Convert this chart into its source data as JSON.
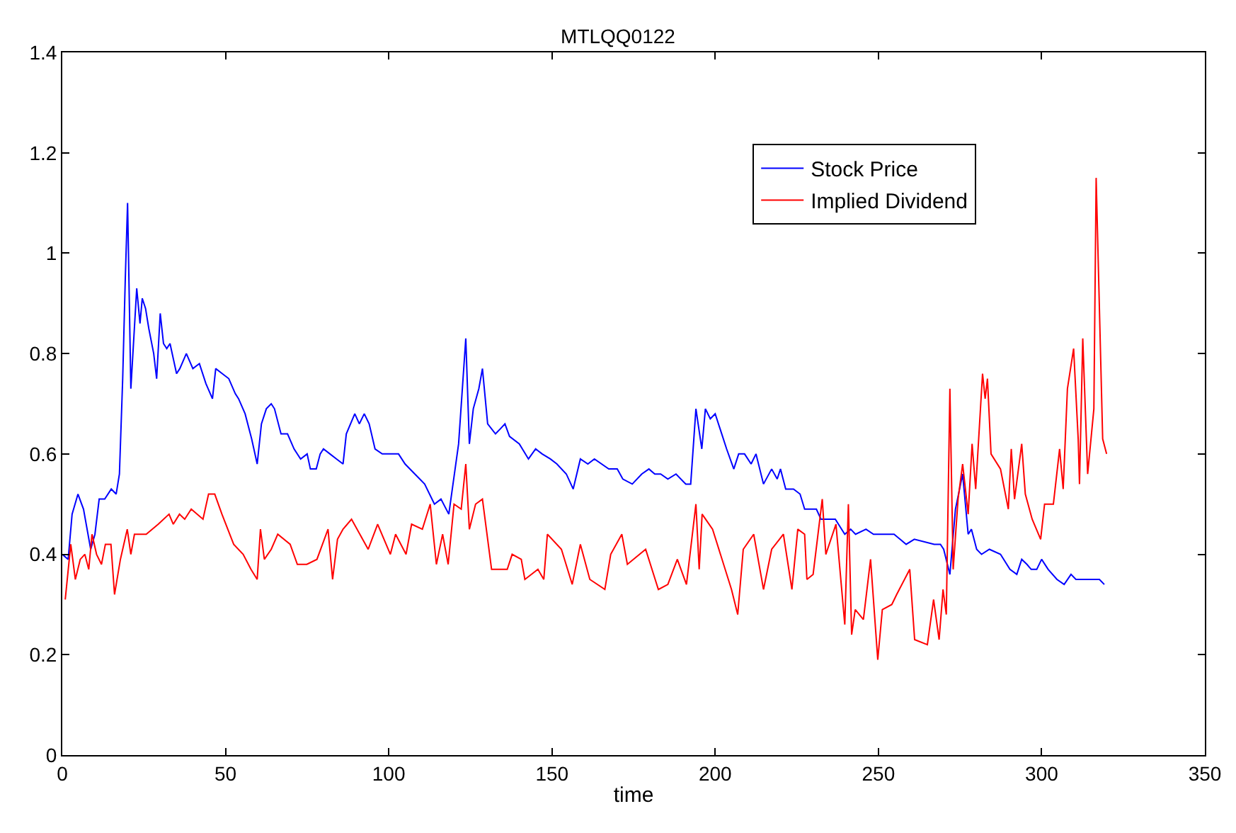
{
  "chart_data": {
    "type": "line",
    "title": "MTLQQ0122",
    "xlabel": "time",
    "xlim": [
      0,
      350
    ],
    "xticks": [
      0,
      50,
      100,
      150,
      200,
      250,
      300,
      350
    ],
    "ylim": [
      0,
      1.4
    ],
    "yticks": [
      0,
      0.2,
      0.4,
      0.6,
      0.8,
      1,
      1.2,
      1.4
    ],
    "grid": false,
    "legend": "top right",
    "marker": "none",
    "line_style": "solid",
    "series": [
      {
        "name": "Stock Price",
        "color": "#0000ff",
        "x": [
          0,
          1.8,
          3,
          4.8,
          6.5,
          8.7,
          10,
          11.3,
          13,
          15,
          16.5,
          17.5,
          18.5,
          19.3,
          20,
          21,
          22.8,
          23.8,
          24.5,
          25.5,
          26.5,
          28,
          28.9,
          30,
          31,
          32,
          33,
          34,
          35,
          36,
          38,
          40,
          42,
          44,
          46,
          47,
          49,
          51,
          53,
          54,
          56,
          58,
          59.7,
          61,
          62.5,
          64,
          65,
          67,
          69,
          71,
          73,
          75,
          76,
          77.8,
          79,
          80,
          82,
          84,
          86,
          87,
          89.6,
          91,
          92.5,
          94,
          95.8,
          98,
          100,
          103,
          105,
          108,
          111,
          114,
          116,
          118.4,
          121.4,
          123.6,
          124.7,
          125.9,
          127.6,
          128.7,
          130.3,
          132.7,
          134.2,
          135.6,
          137,
          140,
          142.8,
          145,
          147,
          149.5,
          151.5,
          154.4,
          156.5,
          158.7,
          161,
          163,
          167.4,
          170,
          171.7,
          174.6,
          177.5,
          179.7,
          181.5,
          183.3,
          185.5,
          188,
          191,
          192.5,
          194.1,
          195.9,
          197,
          198.5,
          200,
          201.5,
          203.5,
          205.7,
          207.2,
          209,
          211,
          212.5,
          214.8,
          217.3,
          219,
          220,
          221.6,
          224,
          226,
          227.4,
          231,
          232.4,
          236.8,
          239.7,
          241.5,
          243,
          246.2,
          248.5,
          251,
          254.8,
          258.5,
          261,
          267.1,
          269,
          270,
          271.9,
          273.6,
          275.8,
          277.5,
          278.5,
          280.1,
          281.6,
          284,
          287.4,
          290.3,
          292.4,
          293.9,
          295.5,
          296.8,
          298.5,
          300,
          302,
          304.7,
          306.9,
          309,
          310.5,
          312.7,
          317.7,
          319.2
        ],
        "values": [
          0.4,
          0.39,
          0.48,
          0.52,
          0.49,
          0.41,
          0.44,
          0.51,
          0.51,
          0.53,
          0.52,
          0.56,
          0.75,
          0.95,
          1.1,
          0.73,
          0.93,
          0.86,
          0.91,
          0.89,
          0.85,
          0.8,
          0.75,
          0.88,
          0.82,
          0.81,
          0.82,
          0.79,
          0.76,
          0.77,
          0.8,
          0.77,
          0.78,
          0.74,
          0.71,
          0.77,
          0.76,
          0.75,
          0.72,
          0.71,
          0.68,
          0.63,
          0.58,
          0.66,
          0.69,
          0.7,
          0.69,
          0.64,
          0.64,
          0.61,
          0.59,
          0.6,
          0.57,
          0.57,
          0.6,
          0.61,
          0.6,
          0.59,
          0.58,
          0.64,
          0.68,
          0.66,
          0.68,
          0.66,
          0.61,
          0.6,
          0.6,
          0.6,
          0.58,
          0.56,
          0.54,
          0.5,
          0.51,
          0.48,
          0.62,
          0.83,
          0.62,
          0.69,
          0.73,
          0.77,
          0.66,
          0.64,
          0.65,
          0.66,
          0.635,
          0.62,
          0.59,
          0.61,
          0.6,
          0.59,
          0.58,
          0.56,
          0.53,
          0.59,
          0.58,
          0.59,
          0.57,
          0.57,
          0.55,
          0.54,
          0.56,
          0.57,
          0.56,
          0.56,
          0.55,
          0.56,
          0.54,
          0.54,
          0.69,
          0.61,
          0.69,
          0.67,
          0.68,
          0.65,
          0.61,
          0.57,
          0.6,
          0.6,
          0.58,
          0.6,
          0.54,
          0.57,
          0.55,
          0.57,
          0.53,
          0.53,
          0.52,
          0.49,
          0.49,
          0.47,
          0.47,
          0.44,
          0.45,
          0.44,
          0.45,
          0.44,
          0.44,
          0.44,
          0.42,
          0.43,
          0.42,
          0.42,
          0.41,
          0.36,
          0.49,
          0.56,
          0.44,
          0.45,
          0.41,
          0.4,
          0.41,
          0.4,
          0.37,
          0.36,
          0.39,
          0.38,
          0.37,
          0.37,
          0.39,
          0.37,
          0.35,
          0.34,
          0.36,
          0.35,
          0.35,
          0.35,
          0.34
        ]
      },
      {
        "name": "Implied Dividend",
        "color": "#ff0000",
        "x": [
          0.9,
          2.6,
          4,
          5.5,
          6.9,
          8.1,
          9.1,
          10.5,
          12,
          13.2,
          14.9,
          16,
          17.8,
          19.9,
          21,
          22.1,
          25.7,
          29.4,
          32.7,
          34,
          35.9,
          37.5,
          39.5,
          43.1,
          44.8,
          46.7,
          48.9,
          52.5,
          55.4,
          57.8,
          59.7,
          60.7,
          61.9,
          64,
          66,
          69.8,
          72,
          74.9,
          78,
          81.4,
          82.8,
          84.3,
          86,
          88.6,
          93.7,
          96.6,
          100.5,
          102.1,
          105.3,
          107,
          110.3,
          112.7,
          114.6,
          116.5,
          118.2,
          120,
          122.2,
          123.6,
          124.7,
          126.6,
          128.7,
          131.5,
          136.3,
          137.8,
          140.6,
          141.7,
          145.7,
          147.5,
          148.6,
          152.9,
          156.2,
          158.7,
          161.6,
          166.2,
          168,
          171.4,
          173.1,
          178.7,
          182.6,
          185.5,
          188.4,
          191.2,
          194.1,
          195.1,
          196,
          199.2,
          205,
          206.9,
          208.6,
          211.8,
          214.8,
          217.3,
          220.9,
          223.5,
          225.3,
          227.4,
          228.1,
          230,
          232.8,
          233.9,
          237,
          239.7,
          240.8,
          241.8,
          242.9,
          245.4,
          247.6,
          249.8,
          251.2,
          254.1,
          255.6,
          259.6,
          261.1,
          265,
          266.9,
          268.6,
          269.8,
          270.8,
          271.9,
          272.9,
          274.4,
          275.8,
          277.5,
          278.7,
          279.8,
          281.9,
          282.7,
          283.4,
          284.5,
          287.4,
          289.8,
          290.7,
          291.7,
          293.9,
          295,
          297.1,
          299.7,
          300.9,
          303.6,
          305.5,
          306.6,
          307.9,
          309.8,
          311.2,
          311.6,
          312.6,
          314.1,
          316,
          316.7,
          318.7,
          319.9
        ],
        "values": [
          0.31,
          0.42,
          0.35,
          0.39,
          0.4,
          0.37,
          0.44,
          0.4,
          0.38,
          0.42,
          0.42,
          0.32,
          0.39,
          0.45,
          0.4,
          0.44,
          0.44,
          0.46,
          0.48,
          0.46,
          0.48,
          0.47,
          0.49,
          0.47,
          0.52,
          0.52,
          0.48,
          0.42,
          0.4,
          0.37,
          0.35,
          0.45,
          0.39,
          0.41,
          0.44,
          0.42,
          0.38,
          0.38,
          0.39,
          0.45,
          0.35,
          0.43,
          0.45,
          0.47,
          0.41,
          0.46,
          0.4,
          0.44,
          0.4,
          0.46,
          0.45,
          0.5,
          0.38,
          0.44,
          0.38,
          0.5,
          0.49,
          0.58,
          0.45,
          0.5,
          0.51,
          0.37,
          0.37,
          0.4,
          0.39,
          0.35,
          0.37,
          0.35,
          0.44,
          0.41,
          0.34,
          0.42,
          0.35,
          0.33,
          0.4,
          0.44,
          0.38,
          0.41,
          0.33,
          0.34,
          0.39,
          0.34,
          0.5,
          0.37,
          0.48,
          0.45,
          0.33,
          0.28,
          0.41,
          0.44,
          0.33,
          0.41,
          0.44,
          0.33,
          0.45,
          0.44,
          0.35,
          0.36,
          0.51,
          0.4,
          0.46,
          0.26,
          0.5,
          0.24,
          0.29,
          0.27,
          0.39,
          0.19,
          0.29,
          0.3,
          0.32,
          0.37,
          0.23,
          0.22,
          0.31,
          0.23,
          0.33,
          0.28,
          0.73,
          0.37,
          0.51,
          0.58,
          0.48,
          0.62,
          0.53,
          0.76,
          0.71,
          0.75,
          0.6,
          0.57,
          0.49,
          0.61,
          0.51,
          0.62,
          0.52,
          0.47,
          0.43,
          0.5,
          0.5,
          0.61,
          0.53,
          0.73,
          0.81,
          0.63,
          0.54,
          0.83,
          0.56,
          0.69,
          1.15,
          0.63,
          0.6
        ]
      }
    ]
  }
}
